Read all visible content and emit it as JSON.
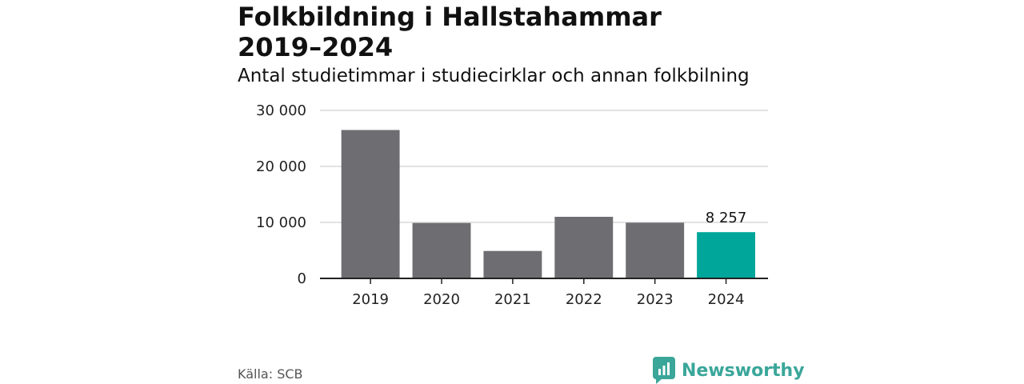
{
  "chart_data": {
    "type": "bar",
    "title": "Folkbildning i Hallstahammar\n2019–2024",
    "subtitle": "Antal studietimmar i studiecirklar och annan folkbilning",
    "categories": [
      "2019",
      "2020",
      "2021",
      "2022",
      "2023",
      "2024"
    ],
    "values": [
      26500,
      9900,
      4900,
      11000,
      9950,
      8257
    ],
    "highlight_index": 5,
    "data_labels": [
      {
        "index": 5,
        "text": "8 257"
      }
    ],
    "yticks": [
      0,
      10000,
      20000,
      30000
    ],
    "ytick_labels": [
      "0",
      "10 000",
      "20 000",
      "30 000"
    ],
    "ylim": [
      0,
      30000
    ],
    "grid": true,
    "colors": {
      "bar": "#6e6d72",
      "highlight": "#00a69a",
      "grid": "#d9d9d9",
      "axis": "#222222"
    }
  },
  "source": "Källa: SCB",
  "brand": {
    "name": "Newsworthy",
    "icon": "newsworthy-logo-icon",
    "color": "#3aa69a"
  }
}
